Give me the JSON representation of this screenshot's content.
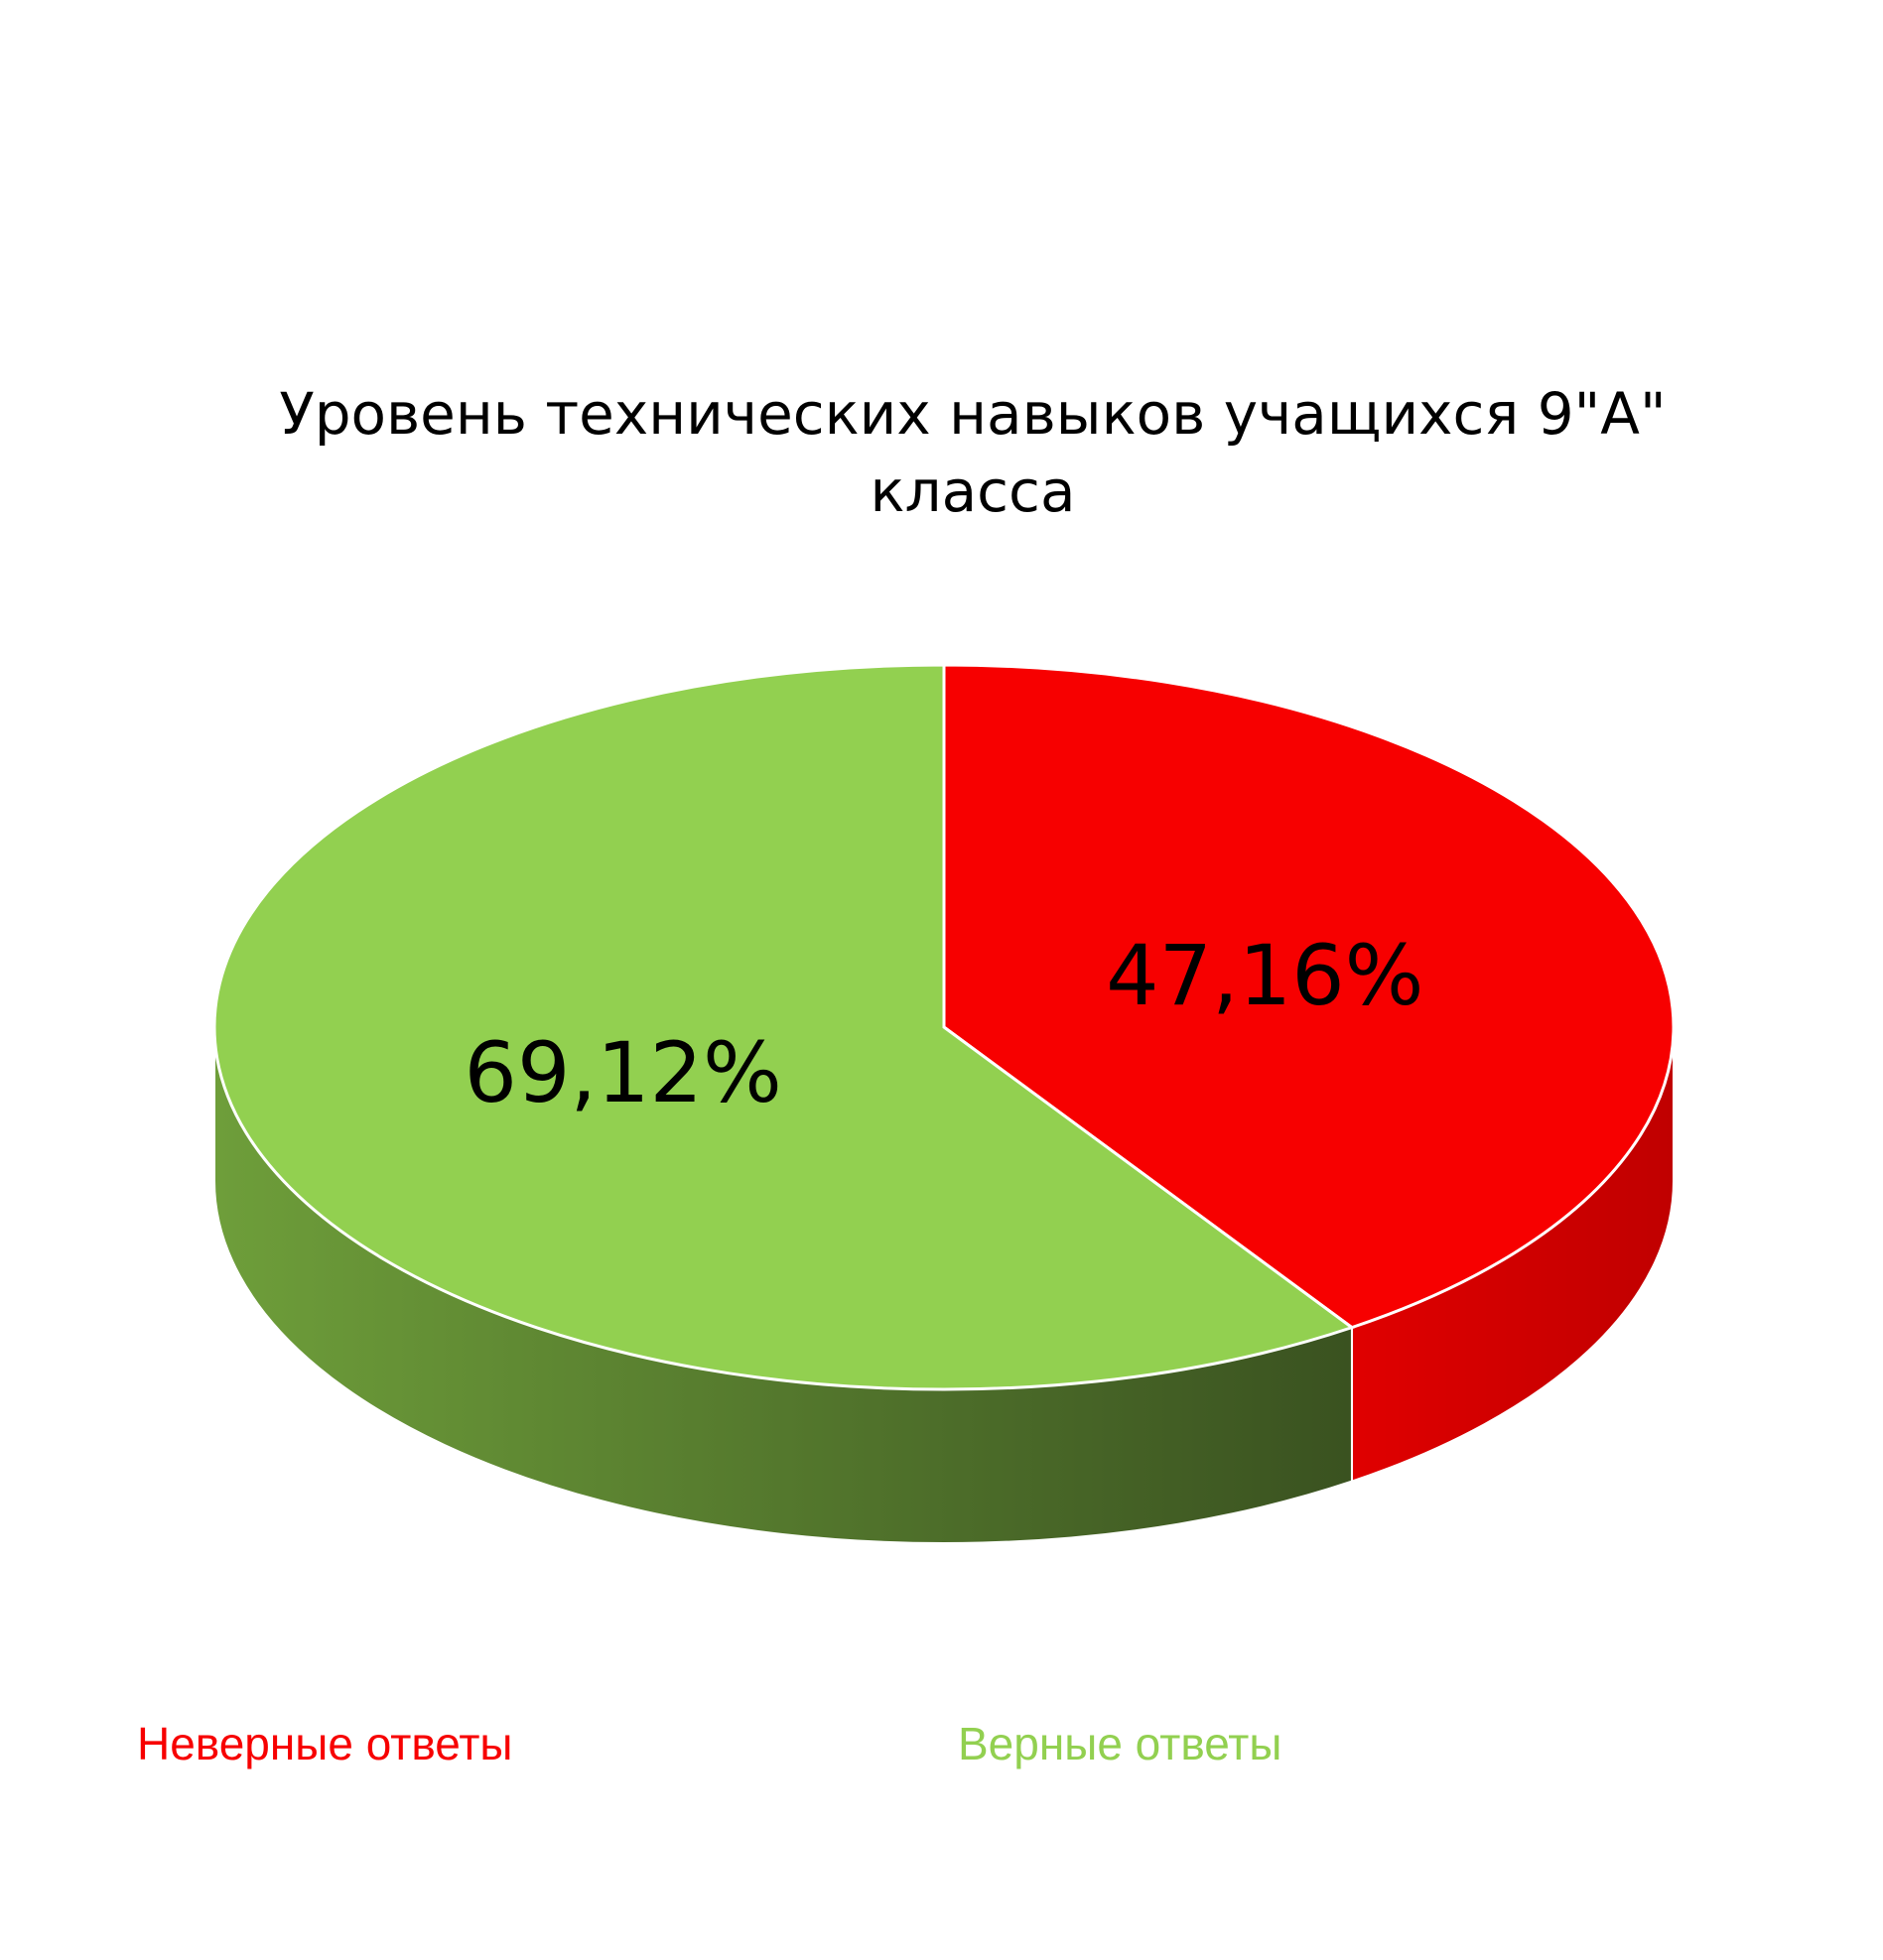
{
  "chart_data": {
    "type": "pie",
    "style": "3d",
    "title": "Уровень технических навыков учащихся 9\"А\"\nкласса",
    "categories": [
      "Неверные ответы",
      "Верные ответы"
    ],
    "values": [
      47.16,
      69.12
    ],
    "labels": [
      "47,16%",
      "69,12%"
    ],
    "colors": [
      "#F70000",
      "#92D050"
    ],
    "side_colors": [
      "#C80000",
      "#3A5220"
    ],
    "legend_position": "bottom"
  }
}
